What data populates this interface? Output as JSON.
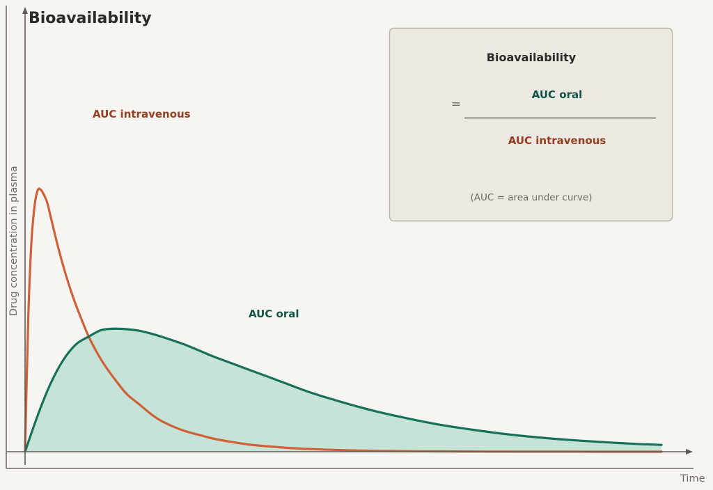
{
  "colors": {
    "iv": "#cd6138",
    "iv_text": "#943e22",
    "oral": "#16705a",
    "oral_text": "#0f5444",
    "oral_fill": "#c6e3d7",
    "box_bg": "#ece9e2",
    "box_border": "#b8b4aa"
  },
  "chart_data": {
    "type": "line",
    "title": "Bioavailability",
    "xlabel": "Time",
    "ylabel": "Drug concentration in plasma",
    "xlim": [
      0,
      1
    ],
    "ylim": [
      0,
      1
    ],
    "grid": false,
    "legend": "none",
    "series": [
      {
        "name": "AUC intravenous",
        "color_key": "iv",
        "filled": false,
        "x": [
          0,
          0.005,
          0.01,
          0.015,
          0.02,
          0.025,
          0.03,
          0.035,
          0.04,
          0.05,
          0.06,
          0.07,
          0.08,
          0.1,
          0.12,
          0.14,
          0.16,
          0.18,
          0.2,
          0.22,
          0.25,
          0.28,
          0.3,
          0.35,
          0.4,
          0.45,
          0.5,
          0.55,
          0.6,
          0.65,
          0.7,
          0.75,
          0.8,
          0.85,
          0.9,
          0.95,
          1.0
        ],
        "y": [
          0,
          0.51,
          0.8,
          0.94,
          1.0,
          1.0,
          0.98,
          0.95,
          0.9,
          0.8,
          0.71,
          0.63,
          0.56,
          0.44,
          0.35,
          0.28,
          0.22,
          0.18,
          0.14,
          0.11,
          0.08,
          0.06,
          0.048,
          0.028,
          0.017,
          0.01,
          0.006,
          0.0035,
          0.002,
          0.0012,
          0.0007,
          0.0004,
          0.0003,
          0.0002,
          0.0001,
          0.0001,
          0
        ]
      },
      {
        "name": "AUC oral",
        "color_key": "oral",
        "filled": true,
        "x": [
          0,
          0.02,
          0.04,
          0.06,
          0.08,
          0.1,
          0.12,
          0.14,
          0.16,
          0.18,
          0.2,
          0.22,
          0.25,
          0.28,
          0.3,
          0.35,
          0.4,
          0.45,
          0.5,
          0.55,
          0.6,
          0.65,
          0.7,
          0.75,
          0.8,
          0.85,
          0.9,
          0.95,
          1.0
        ],
        "y": [
          0,
          0.14,
          0.26,
          0.35,
          0.41,
          0.44,
          0.465,
          0.47,
          0.468,
          0.462,
          0.45,
          0.435,
          0.41,
          0.38,
          0.36,
          0.315,
          0.27,
          0.225,
          0.188,
          0.155,
          0.128,
          0.104,
          0.085,
          0.069,
          0.056,
          0.046,
          0.038,
          0.031,
          0.026
        ]
      }
    ],
    "annotations": {
      "iv_label": "AUC intravenous",
      "oral_label": "AUC oral"
    }
  },
  "formula_box": {
    "title": "Bioavailability",
    "equals": "=",
    "numerator": "AUC oral",
    "denominator": "AUC intravenous",
    "note": "(AUC = area under curve)"
  }
}
